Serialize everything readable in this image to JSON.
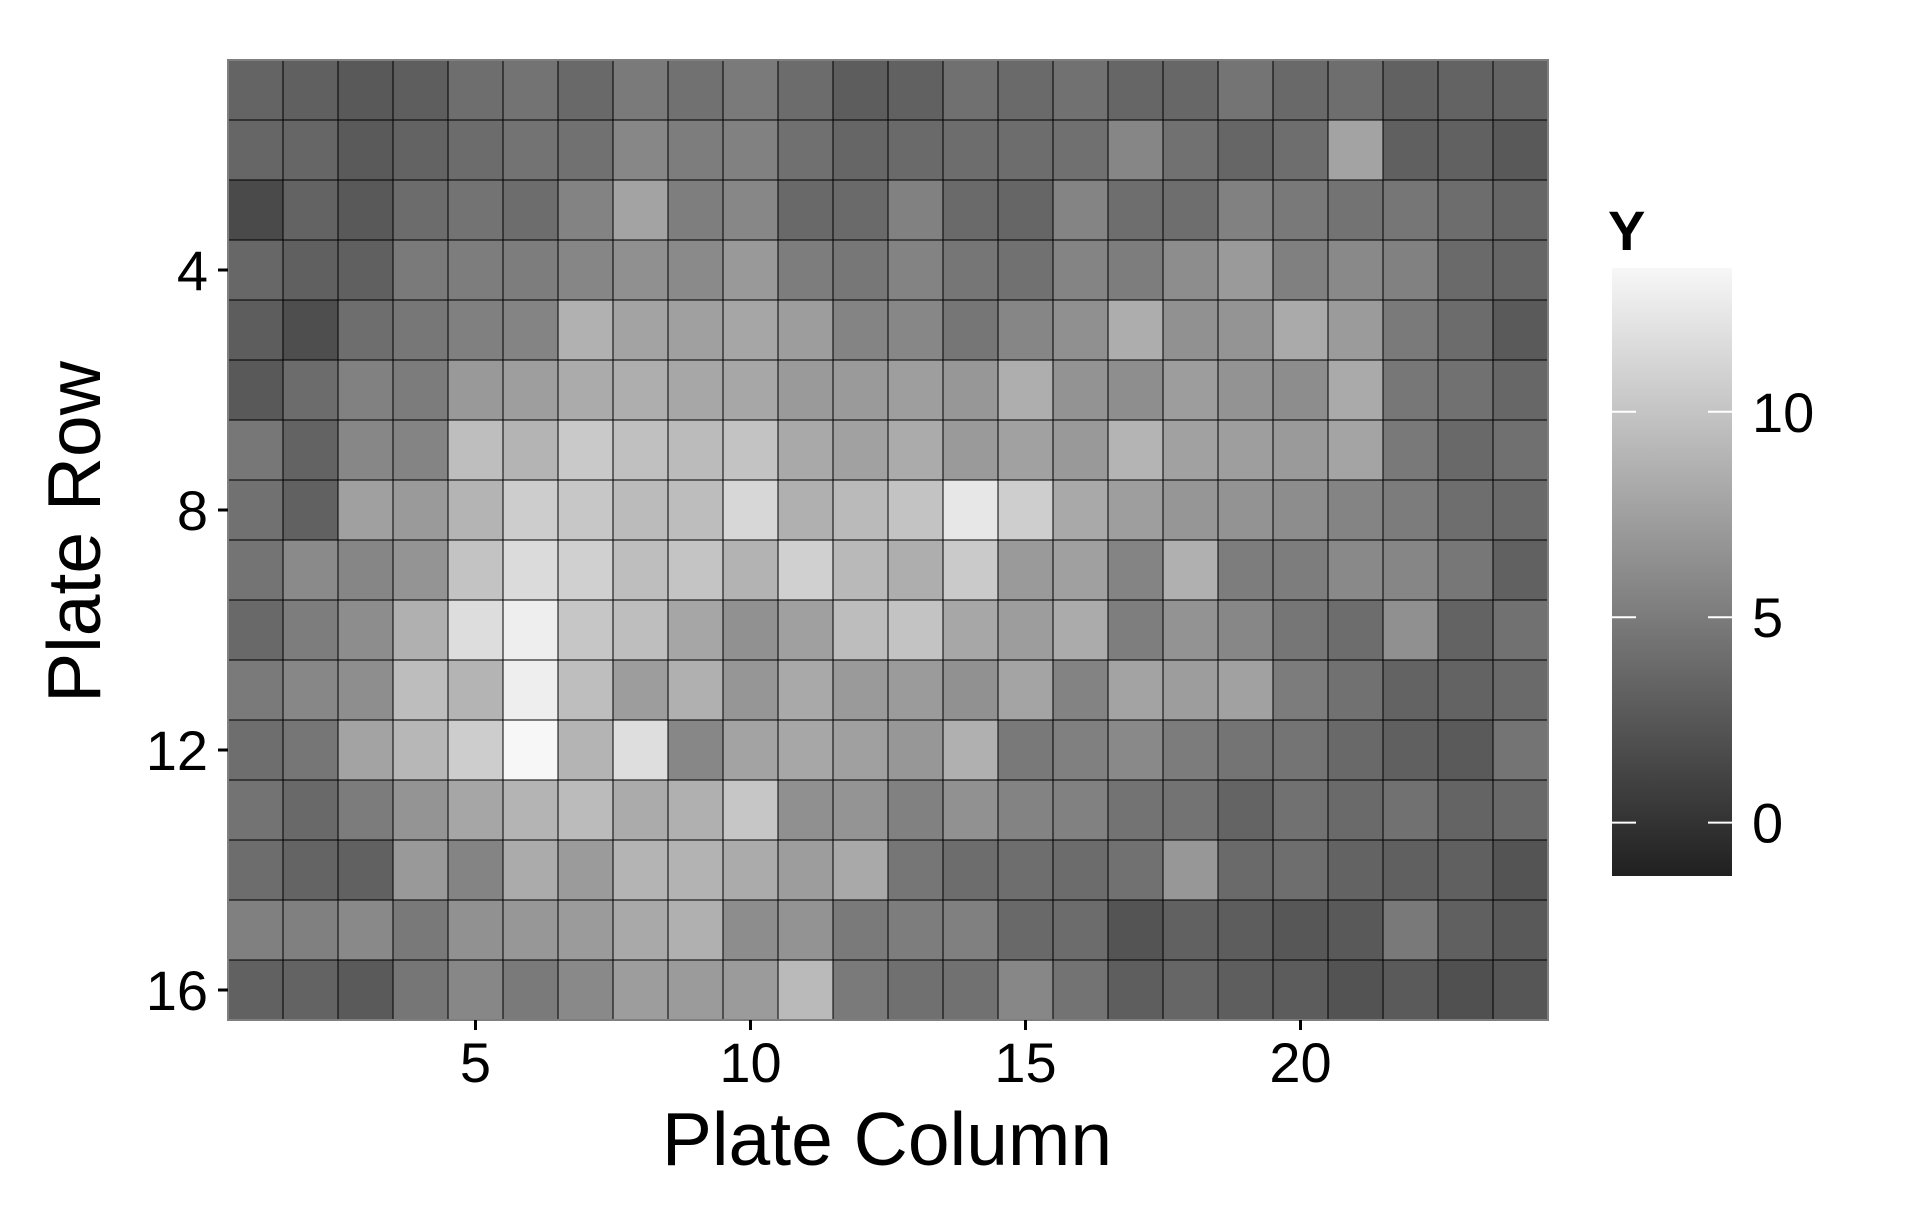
{
  "chart_data": {
    "type": "heatmap",
    "xlabel": "Plate Column",
    "ylabel": "Plate Row",
    "x_ticks": [
      5,
      10,
      15,
      20
    ],
    "y_ticks": [
      4,
      8,
      12,
      16
    ],
    "x_range": [
      1,
      24
    ],
    "y_range": [
      1,
      16
    ],
    "y_reversed": true,
    "legend": {
      "title": "Y",
      "position": "right",
      "ticks": [
        0,
        5,
        10
      ],
      "min": -1.3,
      "max": 13.5,
      "color_low": "#202020",
      "color_high": "#f7f7f7"
    },
    "grid": false,
    "values": [
      [
        3.4,
        3.1,
        2.6,
        3.0,
        4.1,
        4.4,
        3.7,
        4.9,
        4.3,
        4.9,
        3.9,
        2.9,
        3.2,
        4.2,
        3.8,
        4.3,
        3.5,
        3.6,
        4.5,
        3.7,
        4.1,
        3.2,
        3.3,
        3.3
      ],
      [
        3.5,
        3.5,
        2.7,
        3.3,
        3.9,
        4.4,
        4.3,
        5.8,
        5.1,
        5.4,
        4.2,
        3.5,
        3.8,
        4.0,
        4.0,
        4.2,
        5.7,
        4.3,
        3.5,
        4.1,
        7.7,
        3.1,
        3.2,
        2.6
      ],
      [
        1.6,
        3.3,
        2.6,
        3.9,
        4.4,
        4.0,
        5.5,
        7.7,
        5.2,
        5.8,
        3.7,
        3.8,
        5.4,
        3.8,
        3.5,
        5.6,
        4.1,
        4.1,
        5.4,
        4.8,
        4.4,
        4.6,
        4.0,
        3.5
      ],
      [
        3.6,
        3.1,
        3.1,
        4.9,
        5.1,
        5.1,
        5.7,
        6.4,
        6.0,
        7.0,
        5.1,
        4.7,
        5.5,
        4.6,
        4.3,
        5.6,
        5.1,
        6.2,
        7.1,
        5.3,
        5.9,
        5.4,
        3.8,
        3.5
      ],
      [
        2.9,
        1.9,
        4.1,
        4.7,
        5.3,
        5.6,
        8.7,
        7.7,
        7.5,
        7.9,
        7.3,
        5.6,
        5.8,
        4.6,
        5.7,
        6.4,
        8.4,
        6.5,
        6.7,
        8.2,
        7.2,
        4.9,
        3.9,
        2.7
      ],
      [
        2.6,
        3.9,
        5.4,
        5.0,
        7.0,
        7.4,
        8.3,
        8.5,
        8.0,
        8.0,
        7.1,
        7.1,
        7.4,
        6.9,
        8.5,
        6.6,
        6.3,
        7.3,
        6.6,
        6.2,
        8.2,
        4.7,
        4.3,
        3.6
      ],
      [
        4.7,
        3.3,
        5.8,
        5.6,
        9.6,
        8.9,
        10.3,
        9.7,
        9.4,
        9.9,
        8.1,
        7.6,
        8.3,
        7.1,
        7.6,
        7.0,
        8.9,
        7.6,
        7.4,
        7.1,
        7.8,
        4.8,
        3.7,
        4.2
      ],
      [
        4.3,
        3.2,
        7.5,
        7.1,
        8.9,
        10.6,
        10.2,
        9.4,
        9.5,
        11.3,
        8.6,
        9.3,
        9.9,
        12.4,
        10.7,
        8.1,
        7.4,
        6.8,
        6.6,
        6.2,
        5.6,
        5.0,
        4.1,
        3.8
      ],
      [
        4.5,
        6.0,
        5.7,
        6.7,
        9.9,
        11.6,
        10.8,
        9.6,
        10.0,
        8.8,
        10.8,
        9.2,
        8.5,
        10.4,
        7.1,
        7.5,
        5.6,
        8.6,
        5.1,
        5.1,
        5.9,
        5.7,
        4.7,
        3.2
      ],
      [
        3.7,
        5.1,
        6.2,
        8.6,
        11.7,
        12.9,
        10.1,
        9.6,
        7.9,
        6.5,
        7.5,
        9.5,
        9.9,
        8.0,
        7.3,
        8.3,
        5.2,
        6.6,
        5.8,
        4.6,
        4.0,
        6.4,
        3.3,
        4.3
      ],
      [
        4.9,
        5.8,
        6.3,
        9.5,
        8.9,
        12.9,
        9.6,
        7.3,
        8.6,
        6.8,
        8.1,
        7.1,
        7.2,
        6.5,
        7.8,
        5.5,
        7.7,
        7.3,
        7.6,
        5.0,
        4.3,
        3.3,
        3.3,
        3.8
      ],
      [
        4.1,
        4.6,
        7.7,
        9.1,
        10.6,
        13.5,
        8.9,
        11.8,
        5.8,
        7.7,
        8.0,
        7.5,
        6.9,
        8.6,
        4.8,
        5.3,
        5.9,
        5.0,
        4.5,
        4.5,
        3.7,
        3.1,
        2.7,
        4.5
      ],
      [
        4.4,
        3.7,
        5.0,
        6.7,
        7.9,
        8.9,
        9.4,
        8.3,
        8.6,
        10.1,
        6.4,
        6.7,
        5.4,
        6.5,
        5.5,
        5.4,
        4.4,
        4.4,
        3.4,
        4.3,
        3.8,
        4.3,
        3.4,
        3.7
      ],
      [
        4.0,
        3.4,
        3.2,
        7.0,
        5.6,
        8.3,
        7.2,
        8.9,
        8.8,
        8.3,
        7.3,
        8.1,
        4.6,
        4.0,
        4.1,
        3.9,
        4.3,
        6.9,
        3.8,
        4.1,
        3.3,
        3.1,
        3.1,
        2.3
      ],
      [
        5.3,
        5.3,
        5.9,
        4.8,
        6.5,
        6.9,
        7.2,
        8.1,
        8.6,
        6.2,
        6.6,
        4.9,
        5.1,
        5.3,
        3.7,
        3.9,
        2.3,
        3.2,
        2.9,
        2.5,
        2.6,
        4.8,
        3.1,
        2.6
      ],
      [
        3.2,
        3.3,
        2.7,
        4.6,
        5.8,
        4.9,
        5.9,
        7.3,
        7.2,
        7.2,
        9.3,
        4.9,
        4.2,
        4.3,
        5.8,
        4.4,
        3.0,
        3.5,
        3.0,
        2.8,
        2.2,
        2.7,
        2.0,
        2.4
      ]
    ]
  }
}
